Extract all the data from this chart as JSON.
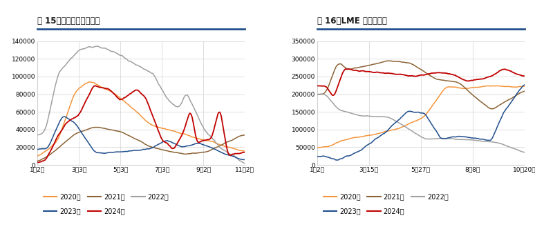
{
  "fig15_title": "图 15：上期所锌库存仓单",
  "fig16_title": "图 16：LME 锌库存仓单",
  "fig15_xticks": [
    "1月2日",
    "3月3日",
    "5月3日",
    "7月3日",
    "9月2日",
    "11月2日"
  ],
  "fig16_xticks": [
    "1月2日",
    "3月15日",
    "5月27日",
    "8月8日",
    "10月20日"
  ],
  "fig15_ylim": [
    0,
    140000
  ],
  "fig15_yticks": [
    0,
    20000,
    40000,
    60000,
    80000,
    100000,
    120000,
    140000
  ],
  "fig16_ylim": [
    0,
    350000
  ],
  "fig16_yticks": [
    0,
    50000,
    100000,
    150000,
    200000,
    250000,
    300000,
    350000
  ],
  "colors": {
    "2020": "#F4943A",
    "2021": "#8B6336",
    "2022": "#A0A0A0",
    "2023": "#1F4E8C",
    "2024": "#C00000"
  },
  "legend_labels": [
    "2020年",
    "2021年",
    "2022年",
    "2023年",
    "2024年"
  ],
  "title_color": "#1A1A1A",
  "header_line_color": "#1F4E8C",
  "bg_color": "#FFFFFF",
  "grid_color": "#D0D0D0",
  "bottom_bar_color": "#1F4E8C"
}
